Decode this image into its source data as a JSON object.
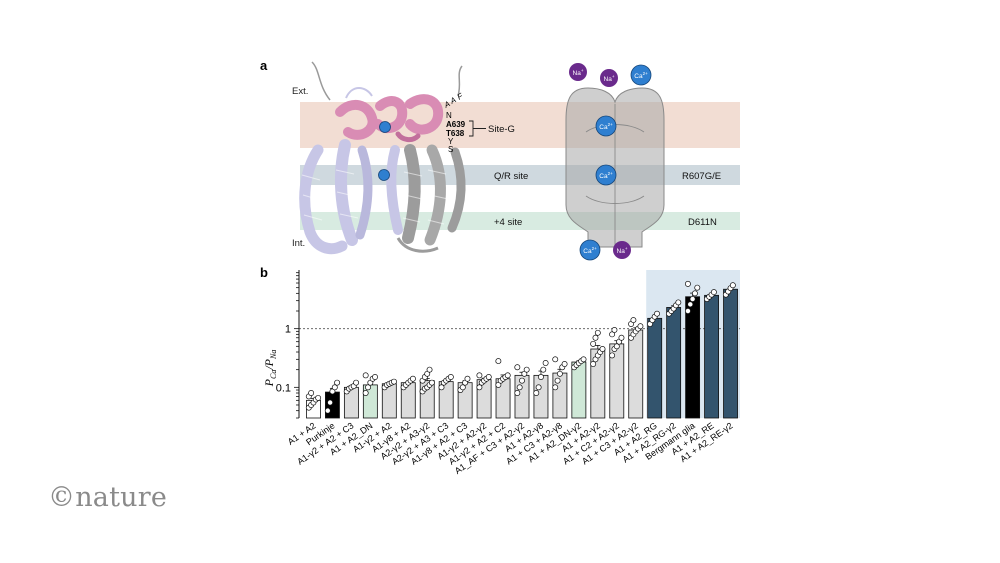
{
  "panel_a": {
    "label": "a",
    "ext_label": "Ext.",
    "int_label": "Int.",
    "top_residues": [
      "A",
      "A",
      "F"
    ],
    "residue_n": "N",
    "residue_a639": "A639",
    "residue_t638": "T638",
    "residue_y": "Y",
    "residue_s": "S",
    "site_g_label": "Site-G",
    "qr_label": "Q/R site",
    "r607_label": "R607G/E",
    "plus4_label": "+4 site",
    "d611_label": "D611N",
    "ion_na": "Na",
    "ion_ca": "Ca",
    "sup_na": "+",
    "sup_ca": "2+",
    "colors": {
      "site_g_band": "#f2ddd3",
      "qr_band": "#cfd9df",
      "plus4_band": "#d8ebe1",
      "channel": "#a7a7a7",
      "ca_ion": "#2f7fd0",
      "na_ion": "#6a2a8c",
      "helix_pink": "#d98cb4",
      "helix_lavender": "#c7c6e6",
      "helix_gray": "#9c9c9c"
    }
  },
  "panel_b": {
    "label": "b",
    "ylabel_main": "P",
    "ylabel_sub1": "Ca",
    "ylabel_slash": "/",
    "ylabel_sub2": "Na",
    "colors": {
      "highlight": "#dbe7f1",
      "bar_gray": "#dcdcdc",
      "bar_green": "#cfe8d7",
      "bar_dark_blue": "#33546d",
      "bar_black": "#000000",
      "bar_white": "#ffffff"
    }
  },
  "chart_data": {
    "type": "bar",
    "yscale": "log",
    "ylim": [
      0.03,
      10
    ],
    "yticks": [
      0.1,
      1
    ],
    "ytick_labels": [
      "0.1",
      "1"
    ],
    "reference_line": 1,
    "highlight_range": [
      "A1 + A2_RG",
      "A1 + A2_RE-γ2"
    ],
    "categories": [
      "A1 + A2",
      "Purkinje",
      "A1-γ2 + A2 + C3",
      "A1 + A2_DN",
      "A1-γ2 + A2",
      "A1-γ8 + A2",
      "A2-γ2 + A3-γ2",
      "A2-γ2 + A3 + C3",
      "A1-γ8 + A2 + C3",
      "A1-γ2 + A2-γ2",
      "A1-γ2 + A2 + C2",
      "A1_AF + C3 + A2-γ2",
      "A1 + A2-γ8",
      "A1 + C3 + A2-γ8",
      "A1 + A2_DN-γ2",
      "A1 + A2-γ2",
      "A1 + C2 + A2-γ2",
      "A1 + C3 + A2-γ2",
      "A1 + A2_RG",
      "A1 + A2_RG-γ2",
      "Bergmann glia",
      "A1 + A2_RE",
      "A1 + A2_RE-γ2"
    ],
    "values": [
      0.06,
      0.083,
      0.1,
      0.11,
      0.115,
      0.12,
      0.13,
      0.125,
      0.12,
      0.135,
      0.14,
      0.16,
      0.16,
      0.175,
      0.27,
      0.45,
      0.55,
      0.95,
      1.5,
      2.3,
      3.5,
      3.7,
      4.7
    ],
    "fills": [
      "white",
      "black",
      "gray",
      "green",
      "gray",
      "gray",
      "gray",
      "gray",
      "gray",
      "gray",
      "gray",
      "gray",
      "gray",
      "gray",
      "green",
      "gray",
      "gray",
      "gray",
      "dark_blue",
      "dark_blue",
      "black",
      "dark_blue",
      "dark_blue"
    ],
    "points": [
      [
        0.045,
        0.05,
        0.055,
        0.062,
        0.066,
        0.07,
        0.08
      ],
      [
        0.04,
        0.055,
        0.085,
        0.1,
        0.12
      ],
      [
        0.085,
        0.095,
        0.1,
        0.105,
        0.12
      ],
      [
        0.08,
        0.1,
        0.12,
        0.14,
        0.15,
        0.16
      ],
      [
        0.1,
        0.11,
        0.115,
        0.12,
        0.125
      ],
      [
        0.1,
        0.11,
        0.12,
        0.13,
        0.14
      ],
      [
        0.085,
        0.095,
        0.1,
        0.11,
        0.12,
        0.13,
        0.15,
        0.17,
        0.2
      ],
      [
        0.1,
        0.12,
        0.13,
        0.14,
        0.15
      ],
      [
        0.09,
        0.1,
        0.12,
        0.14
      ],
      [
        0.1,
        0.12,
        0.13,
        0.14,
        0.15,
        0.16
      ],
      [
        0.11,
        0.13,
        0.14,
        0.15,
        0.16,
        0.28
      ],
      [
        0.08,
        0.1,
        0.13,
        0.17,
        0.2,
        0.22
      ],
      [
        0.08,
        0.1,
        0.15,
        0.2,
        0.26
      ],
      [
        0.1,
        0.13,
        0.17,
        0.22,
        0.25,
        0.3
      ],
      [
        0.22,
        0.24,
        0.26,
        0.28,
        0.3
      ],
      [
        0.25,
        0.3,
        0.35,
        0.4,
        0.45,
        0.55,
        0.7,
        0.85
      ],
      [
        0.35,
        0.45,
        0.5,
        0.6,
        0.7,
        0.8,
        0.95
      ],
      [
        0.7,
        0.8,
        0.9,
        1.0,
        1.1,
        1.2,
        1.4
      ],
      [
        1.2,
        1.4,
        1.6,
        1.8
      ],
      [
        1.8,
        2.0,
        2.2,
        2.5,
        2.8
      ],
      [
        2.0,
        2.6,
        3.2,
        4.0,
        5.0,
        5.8
      ],
      [
        3.2,
        3.5,
        3.8,
        4.2
      ],
      [
        3.8,
        4.3,
        4.9,
        5.5
      ]
    ]
  },
  "watermark": "©nature"
}
